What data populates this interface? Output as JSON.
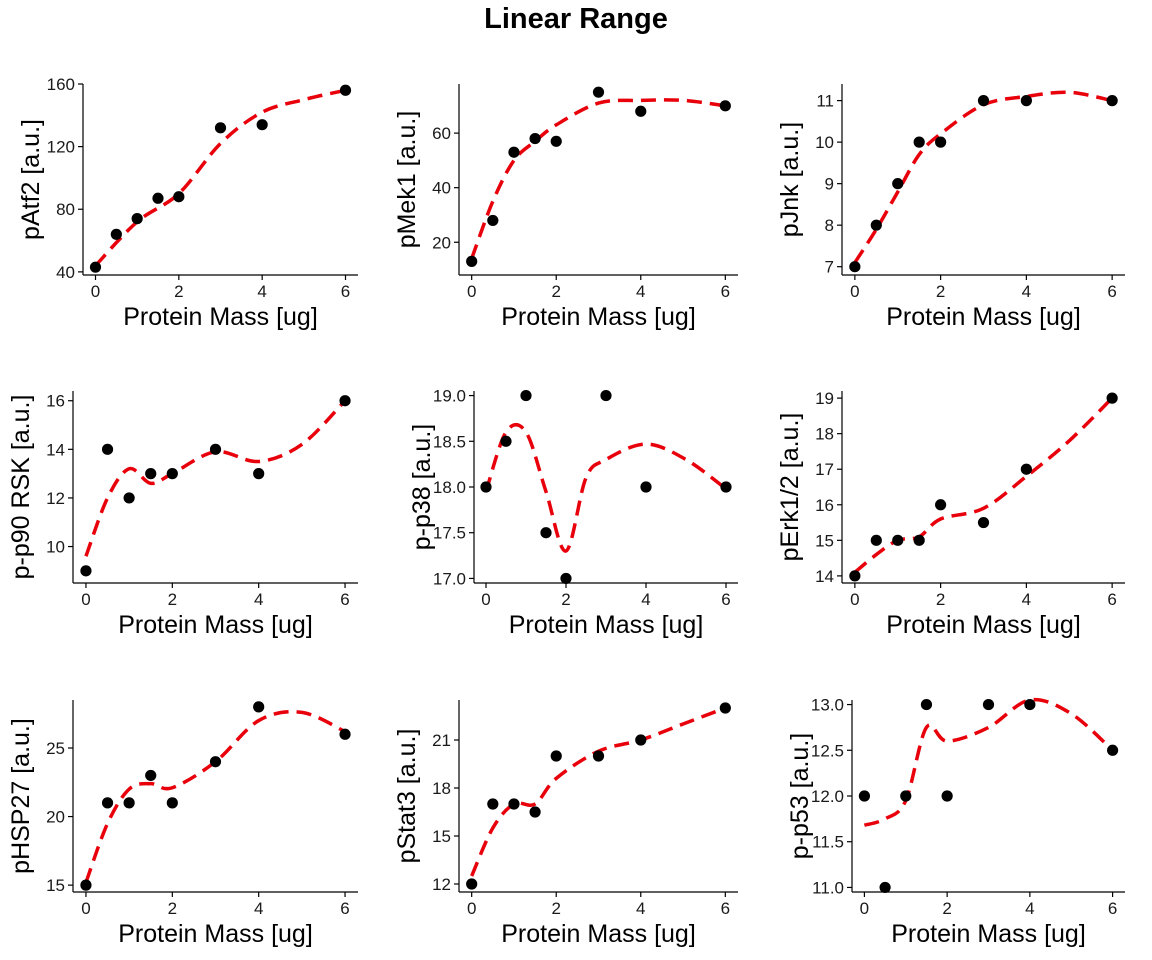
{
  "title": "Linear Range",
  "colors": {
    "fit_line": "#e8000b",
    "points": "#000000",
    "axis": "#000000",
    "tick_text": "#1a1a1a"
  },
  "chart_data": [
    {
      "type": "scatter",
      "xlabel": "Protein Mass [ug]",
      "ylabel": "pAtf2 [a.u.]",
      "xlim": [
        -0.3,
        6.3
      ],
      "ylim": [
        38,
        160
      ],
      "xticks": [
        0,
        2,
        4,
        6
      ],
      "xtick_labels": [
        "0",
        "2",
        "4",
        "6"
      ],
      "yticks": [
        40,
        80,
        120,
        160
      ],
      "ytick_labels": [
        "40",
        "80",
        "120",
        "160"
      ],
      "points": {
        "x": [
          0,
          0.5,
          1,
          1.5,
          2,
          3,
          4,
          6
        ],
        "y": [
          43,
          64,
          74,
          87,
          88,
          132,
          134,
          156
        ]
      },
      "fit_line": {
        "x": [
          0,
          1,
          2,
          3,
          4,
          5,
          6
        ],
        "y": [
          44,
          72,
          90,
          122,
          142,
          150,
          156
        ]
      }
    },
    {
      "type": "scatter",
      "xlabel": "Protein Mass [ug]",
      "ylabel": "pMek1 [a.u.]",
      "xlim": [
        -0.3,
        6.3
      ],
      "ylim": [
        8,
        78
      ],
      "xticks": [
        0,
        2,
        4,
        6
      ],
      "xtick_labels": [
        "0",
        "2",
        "4",
        "6"
      ],
      "yticks": [
        20,
        40,
        60
      ],
      "ytick_labels": [
        "20",
        "40",
        "60"
      ],
      "points": {
        "x": [
          0,
          0.5,
          1,
          1.5,
          2,
          3,
          4,
          6
        ],
        "y": [
          13,
          28,
          53,
          58,
          57,
          75,
          68,
          70
        ]
      },
      "fit_line": {
        "x": [
          0,
          0.5,
          1,
          1.5,
          2,
          3,
          4,
          5,
          6
        ],
        "y": [
          14,
          35,
          50,
          57,
          63,
          71,
          72,
          72,
          70
        ]
      }
    },
    {
      "type": "scatter",
      "xlabel": "Protein Mass [ug]",
      "ylabel": "pJnk [a.u.]",
      "xlim": [
        -0.3,
        6.3
      ],
      "ylim": [
        6.8,
        11.4
      ],
      "xticks": [
        0,
        2,
        4,
        6
      ],
      "xtick_labels": [
        "0",
        "2",
        "4",
        "6"
      ],
      "yticks": [
        7,
        8,
        9,
        10,
        11
      ],
      "ytick_labels": [
        "7",
        "8",
        "9",
        "10",
        "11"
      ],
      "points": {
        "x": [
          0,
          0.5,
          1,
          1.5,
          2,
          3,
          4,
          6
        ],
        "y": [
          7,
          8,
          9,
          10,
          10,
          11,
          11,
          11
        ]
      },
      "fit_line": {
        "x": [
          0,
          0.5,
          1,
          1.5,
          2,
          3,
          4,
          5,
          6
        ],
        "y": [
          7.1,
          7.9,
          8.8,
          9.7,
          10.2,
          10.9,
          11.1,
          11.2,
          11.0
        ]
      }
    },
    {
      "type": "scatter",
      "xlabel": "Protein Mass [ug]",
      "ylabel": "p-p90 RSK [a.u.]",
      "xlim": [
        -0.3,
        6.3
      ],
      "ylim": [
        8.5,
        16.4
      ],
      "xticks": [
        0,
        2,
        4,
        6
      ],
      "xtick_labels": [
        "0",
        "2",
        "4",
        "6"
      ],
      "yticks": [
        10,
        12,
        14,
        16
      ],
      "ytick_labels": [
        "10",
        "12",
        "14",
        "16"
      ],
      "points": {
        "x": [
          0,
          0.5,
          1,
          1.5,
          2,
          3,
          4,
          6
        ],
        "y": [
          9,
          14,
          12,
          13,
          13,
          14,
          13,
          16
        ]
      },
      "fit_line": {
        "x": [
          0,
          0.5,
          1,
          1.5,
          2,
          3,
          4,
          5,
          6
        ],
        "y": [
          9.6,
          12.0,
          13.2,
          12.6,
          13.0,
          13.9,
          13.5,
          14.2,
          16.0
        ]
      }
    },
    {
      "type": "scatter",
      "xlabel": "Protein Mass [ug]",
      "ylabel": "p-p38 [a.u.]",
      "xlim": [
        -0.3,
        6.3
      ],
      "ylim": [
        16.95,
        19.05
      ],
      "xticks": [
        0,
        2,
        4,
        6
      ],
      "xtick_labels": [
        "0",
        "2",
        "4",
        "6"
      ],
      "yticks": [
        17.0,
        17.5,
        18.0,
        18.5,
        19.0
      ],
      "ytick_labels": [
        "17.0",
        "17.5",
        "18.0",
        "18.5",
        "19.0"
      ],
      "points": {
        "x": [
          0,
          0.5,
          1,
          1.5,
          2,
          3,
          4,
          6
        ],
        "y": [
          18.0,
          18.5,
          19.0,
          17.5,
          17.0,
          19.0,
          18.0,
          18.0
        ]
      },
      "fit_line": {
        "x": [
          0,
          0.5,
          1,
          1.5,
          2,
          2.5,
          3,
          4,
          5,
          6
        ],
        "y": [
          17.95,
          18.6,
          18.6,
          17.95,
          17.3,
          18.1,
          18.3,
          18.47,
          18.3,
          17.98
        ]
      }
    },
    {
      "type": "scatter",
      "xlabel": "Protein Mass [ug]",
      "ylabel": "pErk1/2 [a.u.]",
      "xlim": [
        -0.3,
        6.3
      ],
      "ylim": [
        13.8,
        19.2
      ],
      "xticks": [
        0,
        2,
        4,
        6
      ],
      "xtick_labels": [
        "0",
        "2",
        "4",
        "6"
      ],
      "yticks": [
        14,
        15,
        16,
        17,
        18,
        19
      ],
      "ytick_labels": [
        "14",
        "15",
        "16",
        "17",
        "18",
        "19"
      ],
      "points": {
        "x": [
          0,
          0.5,
          1,
          1.5,
          2,
          3,
          4,
          6
        ],
        "y": [
          14,
          15,
          15,
          15,
          16,
          15.5,
          17,
          19
        ]
      },
      "fit_line": {
        "x": [
          0,
          0.5,
          1,
          1.5,
          2,
          3,
          4,
          5,
          6
        ],
        "y": [
          14.1,
          14.6,
          15.0,
          15.1,
          15.6,
          15.9,
          16.8,
          17.8,
          19.0
        ]
      }
    },
    {
      "type": "scatter",
      "xlabel": "Protein Mass [ug]",
      "ylabel": "pHSP27 [a.u.]",
      "xlim": [
        -0.3,
        6.3
      ],
      "ylim": [
        14.5,
        28.5
      ],
      "xticks": [
        0,
        2,
        4,
        6
      ],
      "xtick_labels": [
        "0",
        "2",
        "4",
        "6"
      ],
      "yticks": [
        15,
        20,
        25
      ],
      "ytick_labels": [
        "15",
        "20",
        "25"
      ],
      "points": {
        "x": [
          0,
          0.5,
          1,
          1.5,
          2,
          3,
          4,
          6
        ],
        "y": [
          15,
          21,
          21,
          23,
          21,
          24,
          28,
          26
        ]
      },
      "fit_line": {
        "x": [
          0,
          0.5,
          1,
          1.5,
          2,
          3,
          4,
          5,
          6
        ],
        "y": [
          15.2,
          19.5,
          22.0,
          22.4,
          22.1,
          24.0,
          27.0,
          27.6,
          26.2
        ]
      }
    },
    {
      "type": "scatter",
      "xlabel": "Protein Mass [ug]",
      "ylabel": "pStat3 [a.u.]",
      "xlim": [
        -0.3,
        6.3
      ],
      "ylim": [
        11.5,
        23.5
      ],
      "xticks": [
        0,
        2,
        4,
        6
      ],
      "xtick_labels": [
        "0",
        "2",
        "4",
        "6"
      ],
      "yticks": [
        12,
        15,
        18,
        21
      ],
      "ytick_labels": [
        "12",
        "15",
        "18",
        "21"
      ],
      "points": {
        "x": [
          0,
          0.5,
          1,
          1.5,
          2,
          3,
          4,
          6
        ],
        "y": [
          12,
          17,
          17,
          16.5,
          20,
          20,
          21,
          23
        ]
      },
      "fit_line": {
        "x": [
          0,
          0.5,
          1,
          1.5,
          2,
          3,
          4,
          5,
          6
        ],
        "y": [
          12.5,
          15.5,
          17.0,
          17.0,
          18.6,
          20.3,
          21.0,
          22.0,
          23.0
        ]
      }
    },
    {
      "type": "scatter",
      "xlabel": "Protein Mass [ug]",
      "ylabel": "p-p53 [a.u.]",
      "xlim": [
        -0.3,
        6.3
      ],
      "ylim": [
        10.95,
        13.05
      ],
      "xticks": [
        0,
        2,
        4,
        6
      ],
      "xtick_labels": [
        "0",
        "2",
        "4",
        "6"
      ],
      "yticks": [
        11.0,
        11.5,
        12.0,
        12.5,
        13.0
      ],
      "ytick_labels": [
        "11.0",
        "11.5",
        "12.0",
        "12.5",
        "13.0"
      ],
      "points": {
        "x": [
          0,
          0.5,
          1,
          1.5,
          2,
          3,
          4,
          6
        ],
        "y": [
          12,
          11,
          12,
          13,
          12,
          13,
          13,
          12.5
        ]
      },
      "fit_line": {
        "x": [
          0,
          0.5,
          1,
          1.5,
          2,
          3,
          4,
          5,
          6
        ],
        "y": [
          11.68,
          11.75,
          11.95,
          12.75,
          12.6,
          12.75,
          13.05,
          12.9,
          12.5
        ]
      }
    }
  ]
}
